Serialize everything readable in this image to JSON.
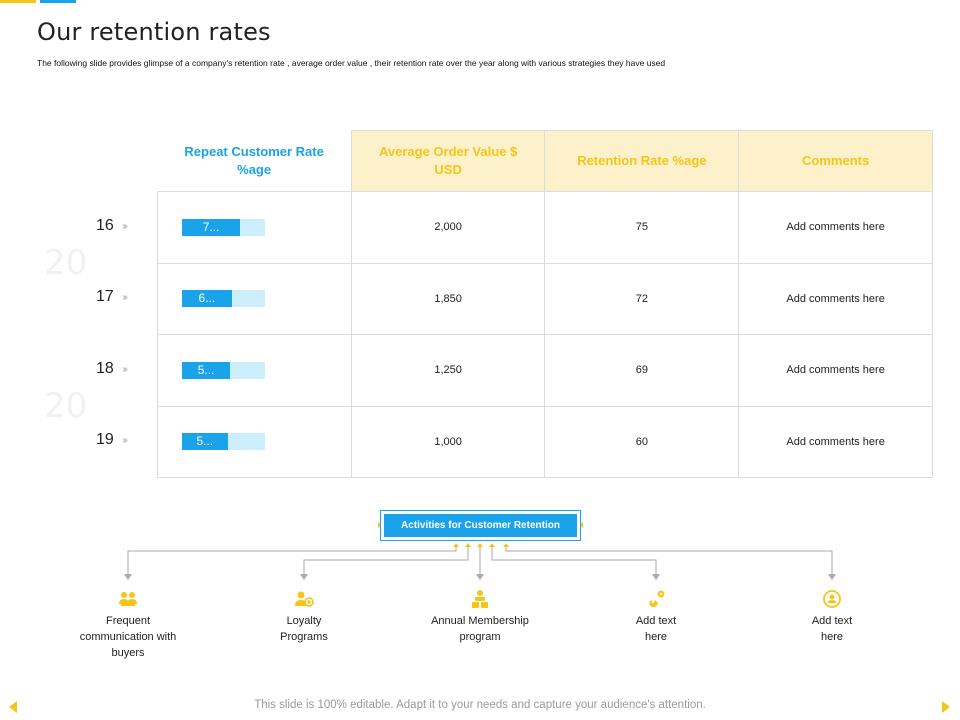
{
  "title": "Our retention rates",
  "subtitle": "The following slide provides glimpse of a company's retention rate , average order value , their retention rate over the year along with various strategies they have used",
  "year_prefix": "20",
  "table": {
    "headers": [
      "Repeat Customer Rate %age",
      "Average Order Value $ USD",
      "Retention Rate %age",
      "Comments"
    ],
    "rows": [
      {
        "year": "16",
        "repeat_label": "7...",
        "repeat_value": 0.7,
        "aov": "2,000",
        "retention": "75",
        "comment": "Add comments here"
      },
      {
        "year": "17",
        "repeat_label": "6...",
        "repeat_value": 0.6,
        "aov": "1,850",
        "retention": "72",
        "comment": "Add comments here"
      },
      {
        "year": "18",
        "repeat_label": "5...",
        "repeat_value": 0.58,
        "aov": "1,250",
        "retention": "69",
        "comment": "Add comments here"
      },
      {
        "year": "19",
        "repeat_label": "5...",
        "repeat_value": 0.55,
        "aov": "1,000",
        "retention": "60",
        "comment": "Add comments here"
      }
    ]
  },
  "activities": {
    "header": "Activities for Customer Retention",
    "items": [
      {
        "label_line1": "Frequent",
        "label_line2": "communication with",
        "label_line3": "buyers",
        "icon": "team-icon"
      },
      {
        "label_line1": "Loyalty",
        "label_line2": "Programs",
        "label_line3": "",
        "icon": "loyalty-icon"
      },
      {
        "label_line1": "Annual Membership",
        "label_line2": "program",
        "label_line3": "",
        "icon": "membership-icon"
      },
      {
        "label_line1": "Add text",
        "label_line2": "here",
        "label_line3": "",
        "icon": "magnet-icon"
      },
      {
        "label_line1": "Add text",
        "label_line2": "here",
        "label_line3": "",
        "icon": "refresh-user-icon"
      }
    ]
  },
  "footer": "This slide is 100% editable. Adapt it to your needs and capture your audience's attention.",
  "colors": {
    "accent_blue": "#1aa3e8",
    "accent_yellow": "#f5c518",
    "light_blue": "#cdeefd",
    "light_yellow": "#fdf1cc"
  }
}
